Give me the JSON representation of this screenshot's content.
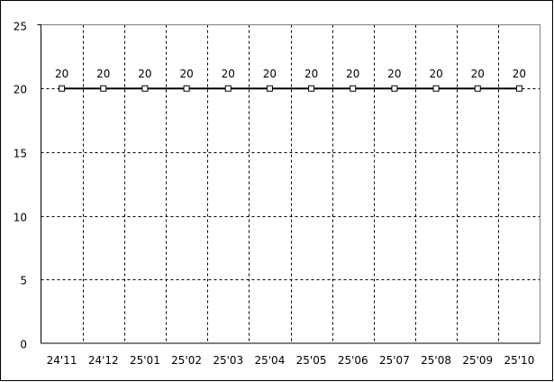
{
  "chart_data": {
    "type": "line",
    "title": "",
    "xlabel": "",
    "ylabel": "",
    "categories": [
      "24'11",
      "24'12",
      "25'01",
      "25'02",
      "25'03",
      "25'04",
      "25'05",
      "25'06",
      "25'07",
      "25'08",
      "25'09",
      "25'10"
    ],
    "series": [
      {
        "values": [
          20,
          20,
          20,
          20,
          20,
          20,
          20,
          20,
          20,
          20,
          20,
          20
        ],
        "color": "#000000",
        "marker": "square"
      }
    ],
    "data_labels": true,
    "ylim": [
      0,
      25
    ],
    "yticks": [
      0,
      5,
      10,
      15,
      20,
      25
    ],
    "grid": true,
    "grid_style": "dashed",
    "legend": "none"
  }
}
